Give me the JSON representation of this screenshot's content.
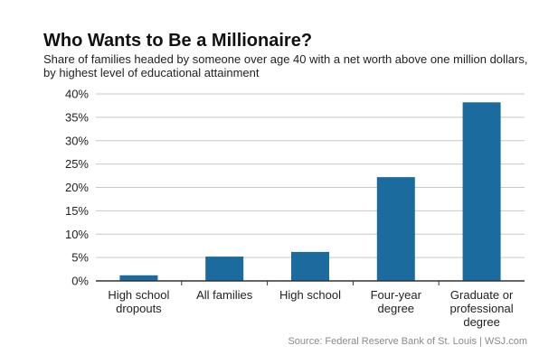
{
  "title": "Who Wants to Be a Millionaire?",
  "subtitle": "Share of families headed by someone over age 40 with a net worth above one million dollars, by highest level of educational attainment",
  "source": "Source: Federal Reserve Bank of St. Louis  |  WSJ.com",
  "colors": {
    "bar": "#1b6b9e",
    "grid": "#c8c8c8",
    "axis": "#333333"
  },
  "chart_data": {
    "type": "bar",
    "categories": [
      [
        "High school",
        "dropouts"
      ],
      [
        "All families"
      ],
      [
        "High school"
      ],
      [
        "Four-year",
        "degree"
      ],
      [
        "Graduate or",
        "professional",
        "degree"
      ]
    ],
    "values": [
      1.2,
      5.2,
      6.2,
      22.2,
      38.2
    ],
    "ylim": [
      0,
      40
    ],
    "yticks": [
      0,
      5,
      10,
      15,
      20,
      25,
      30,
      35,
      40
    ],
    "ytick_labels": [
      "0%",
      "5%",
      "10%",
      "15%",
      "20%",
      "25%",
      "30%",
      "35%",
      "40%"
    ],
    "grid": true,
    "xlabel": "",
    "ylabel": ""
  }
}
